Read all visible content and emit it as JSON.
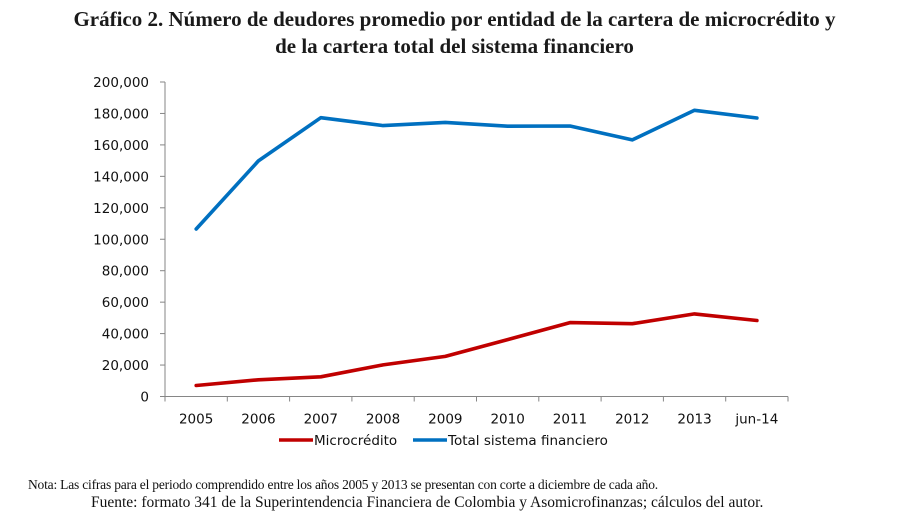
{
  "title": {
    "line1": "Gráfico 2. Número de deudores promedio por entidad de la cartera de microcrédito y",
    "line2": "de la cartera total del sistema financiero"
  },
  "footer": {
    "note": "Nota: Las cifras para el periodo comprendido entre los años 2005 y 2013 se presentan con corte a diciembre de cada año.",
    "source": "Fuente: formato 341 de la Superintendencia Financiera de Colombia y Asomicrofinanzas; cálculos del autor."
  },
  "chart_data": {
    "type": "line",
    "title": "Gráfico 2. Número de deudores promedio por entidad de la cartera de microcrédito y de la cartera total del sistema financiero",
    "xlabel": "",
    "ylabel": "",
    "categories": [
      "2005",
      "2006",
      "2007",
      "2008",
      "2009",
      "2010",
      "2011",
      "2012",
      "2013",
      "jun-14"
    ],
    "ylim": [
      0,
      200000
    ],
    "yticks": [
      0,
      20000,
      40000,
      60000,
      80000,
      100000,
      120000,
      140000,
      160000,
      180000,
      200000
    ],
    "ytick_labels": [
      "0",
      "20,000",
      "40,000",
      "60,000",
      "80,000",
      "100,000",
      "120,000",
      "140,000",
      "160,000",
      "180,000",
      "200,000"
    ],
    "grid": false,
    "legend_position": "bottom",
    "series": [
      {
        "name": "Microcrédito",
        "color": "#C00000",
        "values": [
          7000,
          10600,
          12500,
          20100,
          25500,
          36200,
          47000,
          46300,
          52500,
          48300
        ]
      },
      {
        "name": "Total sistema financiero",
        "color": "#0070C0",
        "values": [
          106500,
          149800,
          177300,
          172300,
          174300,
          171900,
          172000,
          163200,
          182000,
          177100
        ]
      }
    ]
  }
}
